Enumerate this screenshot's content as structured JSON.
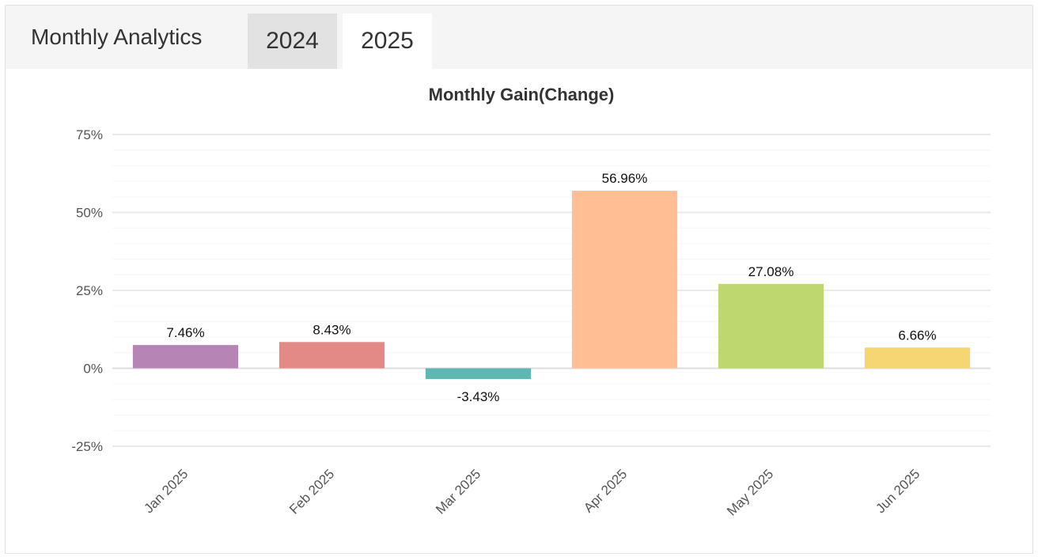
{
  "header": {
    "title": "Monthly Analytics",
    "tabs": [
      {
        "label": "2024",
        "active": false
      },
      {
        "label": "2025",
        "active": true
      }
    ]
  },
  "colors": {
    "bars": [
      "#b784b6",
      "#e38a86",
      "#5eb7b3",
      "#ffbe93",
      "#bed86f",
      "#f6d573"
    ],
    "grid_major": "#e9e9e9",
    "grid_minor": "#f5f5f5",
    "zero_line": "#dddddd"
  },
  "chart_data": {
    "type": "bar",
    "title": "Monthly Gain(Change)",
    "xlabel": "",
    "ylabel": "",
    "categories": [
      "Jan 2025",
      "Feb 2025",
      "Mar 2025",
      "Apr 2025",
      "May 2025",
      "Jun 2025"
    ],
    "values": [
      7.46,
      8.43,
      -3.43,
      56.96,
      27.08,
      6.66
    ],
    "data_labels": [
      "7.46%",
      "8.43%",
      "-3.43%",
      "56.96%",
      "27.08%",
      "6.66%"
    ],
    "ylim": [
      -25,
      75
    ],
    "yticks": [
      75,
      50,
      25,
      0,
      -25
    ],
    "ytick_labels": [
      "75%",
      "50%",
      "25%",
      "0%",
      "-25%"
    ],
    "grid": true,
    "legend": "none"
  }
}
